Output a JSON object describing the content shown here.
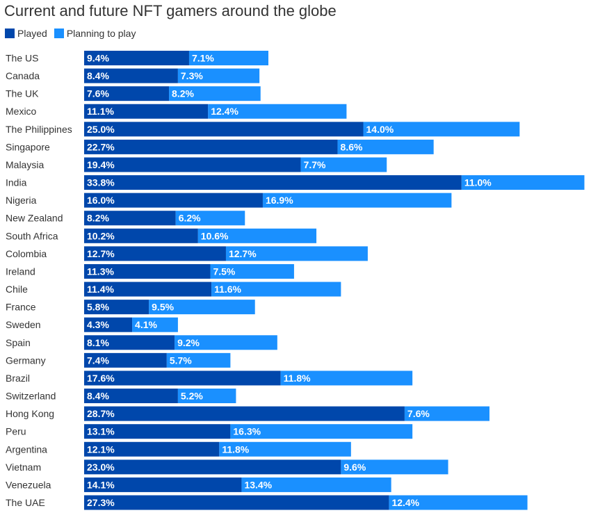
{
  "chart_data": {
    "type": "bar",
    "orientation": "horizontal",
    "stacked": true,
    "title": "Current and future NFT gamers around the globe",
    "xlabel": "",
    "ylabel": "",
    "value_suffix": "%",
    "legend_position": "top-left",
    "grid": false,
    "categories": [
      "The US",
      "Canada",
      "The UK",
      "Mexico",
      "The Philippines",
      "Singapore",
      "Malaysia",
      "India",
      "Nigeria",
      "New Zealand",
      "South Africa",
      "Colombia",
      "Ireland",
      "Chile",
      "France",
      "Sweden",
      "Spain",
      "Germany",
      "Brazil",
      "Switzerland",
      "Hong Kong",
      "Peru",
      "Argentina",
      "Vietnam",
      "Venezuela",
      "The UAE"
    ],
    "series": [
      {
        "name": "Played",
        "color": "#0047AB",
        "values": [
          9.4,
          8.4,
          7.6,
          11.1,
          25.0,
          22.7,
          19.4,
          33.8,
          16.0,
          8.2,
          10.2,
          12.7,
          11.3,
          11.4,
          5.8,
          4.3,
          8.1,
          7.4,
          17.6,
          8.4,
          28.7,
          13.1,
          12.1,
          23.0,
          14.1,
          27.3
        ]
      },
      {
        "name": "Planning to play",
        "color": "#1A90FF",
        "values": [
          7.1,
          7.3,
          8.2,
          12.4,
          14.0,
          8.6,
          7.7,
          11.0,
          16.9,
          6.2,
          10.6,
          12.7,
          7.5,
          11.6,
          9.5,
          4.1,
          9.2,
          5.7,
          11.8,
          5.2,
          7.6,
          16.3,
          11.8,
          9.6,
          13.4,
          12.4
        ]
      }
    ]
  }
}
